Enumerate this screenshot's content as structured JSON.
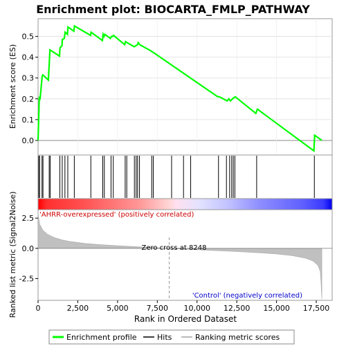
{
  "chart_data": {
    "type": "line",
    "title": "Enrichment plot: BIOCARTA_FMLP_PATHWAY",
    "top_panel": {
      "ylabel": "Enrichment score (ES)",
      "ylim": [
        -0.07,
        0.585
      ],
      "yticks": [
        "0.0",
        "0.1",
        "0.2",
        "0.3",
        "0.4",
        "0.5"
      ],
      "ytick_values": [
        0.0,
        0.1,
        0.2,
        0.3,
        0.4,
        0.5
      ],
      "series": [
        {
          "name": "Enrichment profile",
          "color": "#00ff00",
          "x": [
            0,
            80,
            120,
            260,
            300,
            650,
            700,
            750,
            1350,
            1380,
            1500,
            1530,
            1650,
            1700,
            1850,
            1880,
            2250,
            2290,
            3300,
            3340,
            4050,
            4090,
            4150,
            4200,
            4550,
            4620,
            4700,
            4750,
            5450,
            5500,
            5600,
            6050,
            6150,
            6250,
            6300,
            6400,
            7100,
            7200,
            7300,
            11300,
            11400,
            11900,
            12000,
            12100,
            12300,
            12400,
            13700,
            13800,
            17350,
            17400,
            17850
          ],
          "y": [
            0.0,
            0.21,
            0.195,
            0.31,
            0.315,
            0.29,
            0.365,
            0.435,
            0.405,
            0.445,
            0.455,
            0.485,
            0.49,
            0.52,
            0.51,
            0.545,
            0.525,
            0.55,
            0.505,
            0.52,
            0.48,
            0.51,
            0.5,
            0.51,
            0.49,
            0.5,
            0.5,
            0.505,
            0.46,
            0.475,
            0.47,
            0.45,
            0.455,
            0.46,
            0.47,
            0.46,
            0.43,
            0.425,
            0.42,
            0.21,
            0.21,
            0.19,
            0.2,
            0.19,
            0.205,
            0.21,
            0.13,
            0.15,
            -0.05,
            0.025,
            0.0
          ]
        }
      ]
    },
    "hits": [
      40,
      100,
      250,
      310,
      700,
      760,
      1370,
      1520,
      1690,
      1870,
      2280,
      3320,
      4070,
      4170,
      4590,
      4730,
      5480,
      5580,
      6060,
      6170,
      6260,
      6380,
      7150,
      7250,
      8400,
      9150,
      9600,
      11350,
      11850,
      12050,
      12180,
      12280,
      12380,
      13750,
      17380
    ],
    "heat_bar": {
      "stops": [
        {
          "pos": 0.0,
          "color": "#ff0000"
        },
        {
          "pos": 0.03,
          "color": "#ff3030"
        },
        {
          "pos": 0.15,
          "color": "#ff4f4f"
        },
        {
          "pos": 0.35,
          "color": "#ff9a9a"
        },
        {
          "pos": 0.45,
          "color": "#ffd8d8"
        },
        {
          "pos": 0.47,
          "color": "#ffe0f0"
        },
        {
          "pos": 0.55,
          "color": "#e2e2ff"
        },
        {
          "pos": 0.65,
          "color": "#c0c0ff"
        },
        {
          "pos": 0.75,
          "color": "#8f8fff"
        },
        {
          "pos": 0.9,
          "color": "#5f5fff"
        },
        {
          "pos": 0.97,
          "color": "#3a3aff"
        },
        {
          "pos": 1.0,
          "color": "#0000ee"
        }
      ]
    },
    "bottom_panel": {
      "ylabel": "Ranked list metric (Signal2Noise)",
      "ylim": [
        -4.3,
        3.2
      ],
      "yticks": [
        "2.5",
        "0.0",
        "-2.5"
      ],
      "ytick_values": [
        2.5,
        0.0,
        -2.5
      ],
      "x": [
        0,
        100,
        300,
        600,
        1000,
        1500,
        2000,
        3000,
        4000,
        5000,
        6000,
        7000,
        8248,
        9000,
        10000,
        11000,
        12000,
        13000,
        14000,
        15000,
        16000,
        16800,
        17300,
        17600,
        17750,
        17800,
        17850
      ],
      "values": [
        2.9,
        2.0,
        1.5,
        1.15,
        0.9,
        0.7,
        0.57,
        0.4,
        0.3,
        0.22,
        0.15,
        0.08,
        0.0,
        -0.05,
        -0.11,
        -0.17,
        -0.23,
        -0.3,
        -0.37,
        -0.46,
        -0.6,
        -0.8,
        -1.05,
        -1.4,
        -1.9,
        -2.8,
        -4.2
      ],
      "pos_label": "'AHRR-overexpressed' (positively correlated)",
      "neg_label": "'Control' (negatively correlated)",
      "zero_cross_label": "Zero cross at 8248",
      "zero_cross": 8248
    },
    "x_axis": {
      "label": "Rank in Ordered Dataset",
      "xlim": [
        0,
        18500
      ],
      "ticks": [
        "0",
        "2,500",
        "5,000",
        "7,500",
        "10,000",
        "12,500",
        "15,000",
        "17,500"
      ],
      "tick_values": [
        0,
        2500,
        5000,
        7500,
        10000,
        12500,
        15000,
        17500
      ]
    },
    "legend": {
      "placement": "bottom",
      "items": [
        {
          "label": "Enrichment profile",
          "color": "#00ff00"
        },
        {
          "label": "Hits",
          "color": "#000000"
        },
        {
          "label": "Ranking metric scores",
          "color": "#bbbbbb"
        }
      ]
    },
    "colors": {
      "es_line": "#00ff00",
      "metric_fill": "#c0c0c0",
      "pos_label": "#cc0000",
      "neg_label": "#0000cc"
    }
  }
}
